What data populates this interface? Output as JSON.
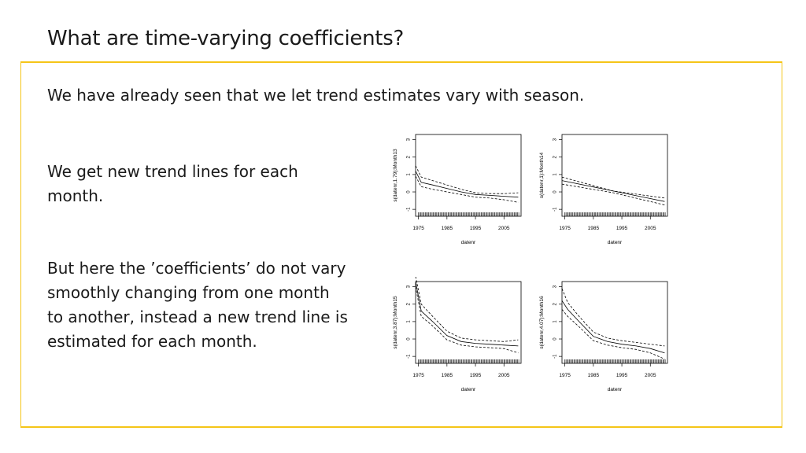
{
  "slide": {
    "title": "What are time-varying coefficients?",
    "intro": "We have already seen that we let trend estimates vary with season.",
    "point1_line1": "We get new trend lines for each",
    "point1_line2": "month.",
    "point2_line1": "But here the ’coefficients’ do not vary",
    "point2_line2": "smoothly changing from one month",
    "point2_line3": "to another, instead a new trend line is",
    "point2_line4": "estimated for each month."
  },
  "colors": {
    "accent": "#f5c518",
    "text": "#1a1a1a"
  },
  "chart_data": [
    {
      "type": "line",
      "ylabel": "s(datenr,1.79):Month13",
      "xlabel": "datenr",
      "xticks": [
        "1975",
        "1985",
        "1995",
        "2005"
      ],
      "xtick_values": [
        1975,
        1985,
        1995,
        2005
      ],
      "yticks": [
        "-1",
        "0",
        "1",
        "2",
        "3"
      ],
      "xlim": [
        1974,
        2011
      ],
      "ylim": [
        -1.4,
        3.3
      ],
      "series": [
        {
          "name": "fit",
          "x": [
            1974,
            1976,
            1980,
            1985,
            1990,
            1995,
            2000,
            2005,
            2010
          ],
          "values": [
            1.2,
            0.55,
            0.4,
            0.2,
            0.0,
            -0.15,
            -0.2,
            -0.25,
            -0.3
          ]
        },
        {
          "name": "upper",
          "x": [
            1974,
            1976,
            1980,
            1985,
            1990,
            1995,
            2000,
            2005,
            2010
          ],
          "values": [
            1.5,
            0.85,
            0.65,
            0.4,
            0.15,
            -0.05,
            -0.1,
            -0.1,
            -0.05
          ]
        },
        {
          "name": "lower",
          "x": [
            1974,
            1976,
            1980,
            1985,
            1990,
            1995,
            2000,
            2005,
            2010
          ],
          "values": [
            0.9,
            0.3,
            0.15,
            0.0,
            -0.15,
            -0.3,
            -0.35,
            -0.45,
            -0.6
          ]
        }
      ]
    },
    {
      "type": "line",
      "ylabel": "s(datenr,1):Month14",
      "xlabel": "datenr",
      "xticks": [
        "1975",
        "1985",
        "1995",
        "2005"
      ],
      "xtick_values": [
        1975,
        1985,
        1995,
        2005
      ],
      "yticks": [
        "-1",
        "0",
        "1",
        "2",
        "3"
      ],
      "xlim": [
        1974,
        2011
      ],
      "ylim": [
        -1.4,
        3.3
      ],
      "series": [
        {
          "name": "fit",
          "x": [
            1974,
            2010
          ],
          "values": [
            0.65,
            -0.55
          ]
        },
        {
          "name": "upper",
          "x": [
            1974,
            1992,
            2010
          ],
          "values": [
            0.85,
            0.05,
            -0.35
          ]
        },
        {
          "name": "lower",
          "x": [
            1974,
            1992,
            2010
          ],
          "values": [
            0.45,
            -0.05,
            -0.75
          ]
        }
      ]
    },
    {
      "type": "line",
      "ylabel": "s(datenr,3.87):Month15",
      "xlabel": "datenr",
      "xticks": [
        "1975",
        "1985",
        "1995",
        "2005"
      ],
      "xtick_values": [
        1975,
        1985,
        1995,
        2005
      ],
      "yticks": [
        "-1",
        "0",
        "1",
        "2",
        "3"
      ],
      "xlim": [
        1974,
        2011
      ],
      "ylim": [
        -1.4,
        3.3
      ],
      "series": [
        {
          "name": "fit",
          "x": [
            1974,
            1976,
            1980,
            1985,
            1990,
            1995,
            2000,
            2005,
            2010
          ],
          "values": [
            3.3,
            1.6,
            1.0,
            0.2,
            -0.15,
            -0.25,
            -0.3,
            -0.35,
            -0.4
          ]
        },
        {
          "name": "upper",
          "x": [
            1974,
            1976,
            1980,
            1985,
            1990,
            1995,
            2000,
            2005,
            2010
          ],
          "values": [
            3.6,
            2.0,
            1.3,
            0.45,
            0.05,
            -0.05,
            -0.1,
            -0.15,
            -0.05
          ]
        },
        {
          "name": "lower",
          "x": [
            1974,
            1976,
            1980,
            1985,
            1990,
            1995,
            2000,
            2005,
            2010
          ],
          "values": [
            3.0,
            1.3,
            0.75,
            -0.05,
            -0.35,
            -0.45,
            -0.5,
            -0.55,
            -0.8
          ]
        }
      ]
    },
    {
      "type": "line",
      "ylabel": "s(datenr,4.07):Month16",
      "xlabel": "datenr",
      "xticks": [
        "1975",
        "1985",
        "1995",
        "2005"
      ],
      "xtick_values": [
        1975,
        1985,
        1995,
        2005
      ],
      "yticks": [
        "-1",
        "0",
        "1",
        "2",
        "3"
      ],
      "xlim": [
        1974,
        2011
      ],
      "ylim": [
        -1.4,
        3.3
      ],
      "series": [
        {
          "name": "fit",
          "x": [
            1974,
            1976,
            1980,
            1985,
            1990,
            1995,
            2000,
            2005,
            2010
          ],
          "values": [
            2.2,
            1.7,
            1.0,
            0.15,
            -0.15,
            -0.3,
            -0.4,
            -0.55,
            -0.8
          ]
        },
        {
          "name": "upper",
          "x": [
            1974,
            1976,
            1980,
            1985,
            1990,
            1995,
            2000,
            2005,
            2010
          ],
          "values": [
            2.9,
            2.1,
            1.3,
            0.4,
            0.05,
            -0.1,
            -0.2,
            -0.3,
            -0.4
          ]
        },
        {
          "name": "lower",
          "x": [
            1974,
            1976,
            1980,
            1985,
            1990,
            1995,
            2000,
            2005,
            2010
          ],
          "values": [
            1.7,
            1.3,
            0.7,
            -0.1,
            -0.35,
            -0.5,
            -0.6,
            -0.8,
            -1.15
          ]
        }
      ]
    }
  ]
}
